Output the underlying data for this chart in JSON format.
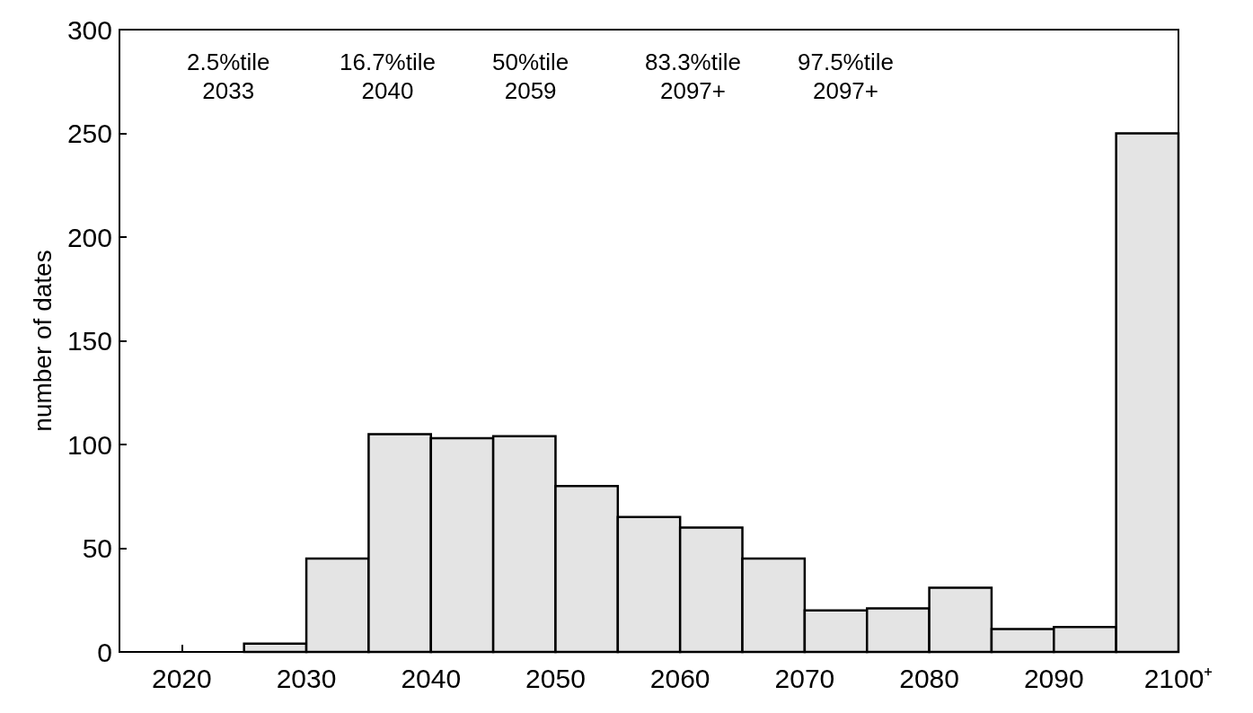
{
  "chart_data": {
    "type": "histogram",
    "ylabel": "number of dates",
    "bins": [
      2015,
      2020,
      2025,
      2030,
      2035,
      2040,
      2045,
      2050,
      2055,
      2060,
      2065,
      2070,
      2075,
      2080,
      2085,
      2090,
      2095,
      2100
    ],
    "values": [
      0,
      0,
      4,
      45,
      105,
      103,
      104,
      80,
      65,
      60,
      45,
      20,
      21,
      31,
      11,
      12,
      250
    ],
    "color": "#e4e4e4",
    "xlim": [
      2015,
      2100
    ],
    "xticks": [
      2020,
      2030,
      2040,
      2050,
      2060,
      2070,
      2080,
      2090,
      {
        "value": 2100,
        "label": "2100⁺"
      }
    ],
    "ylim": [
      0,
      300
    ],
    "yticks": [
      0,
      50,
      100,
      150,
      200,
      250,
      300
    ],
    "grid": false,
    "annotations": [
      "2.5%tile\n2033",
      "16.7%tile\n2040",
      "50%tile\n2059",
      "83.3%tile\n2097+",
      "97.5%tile\n2097+"
    ]
  }
}
